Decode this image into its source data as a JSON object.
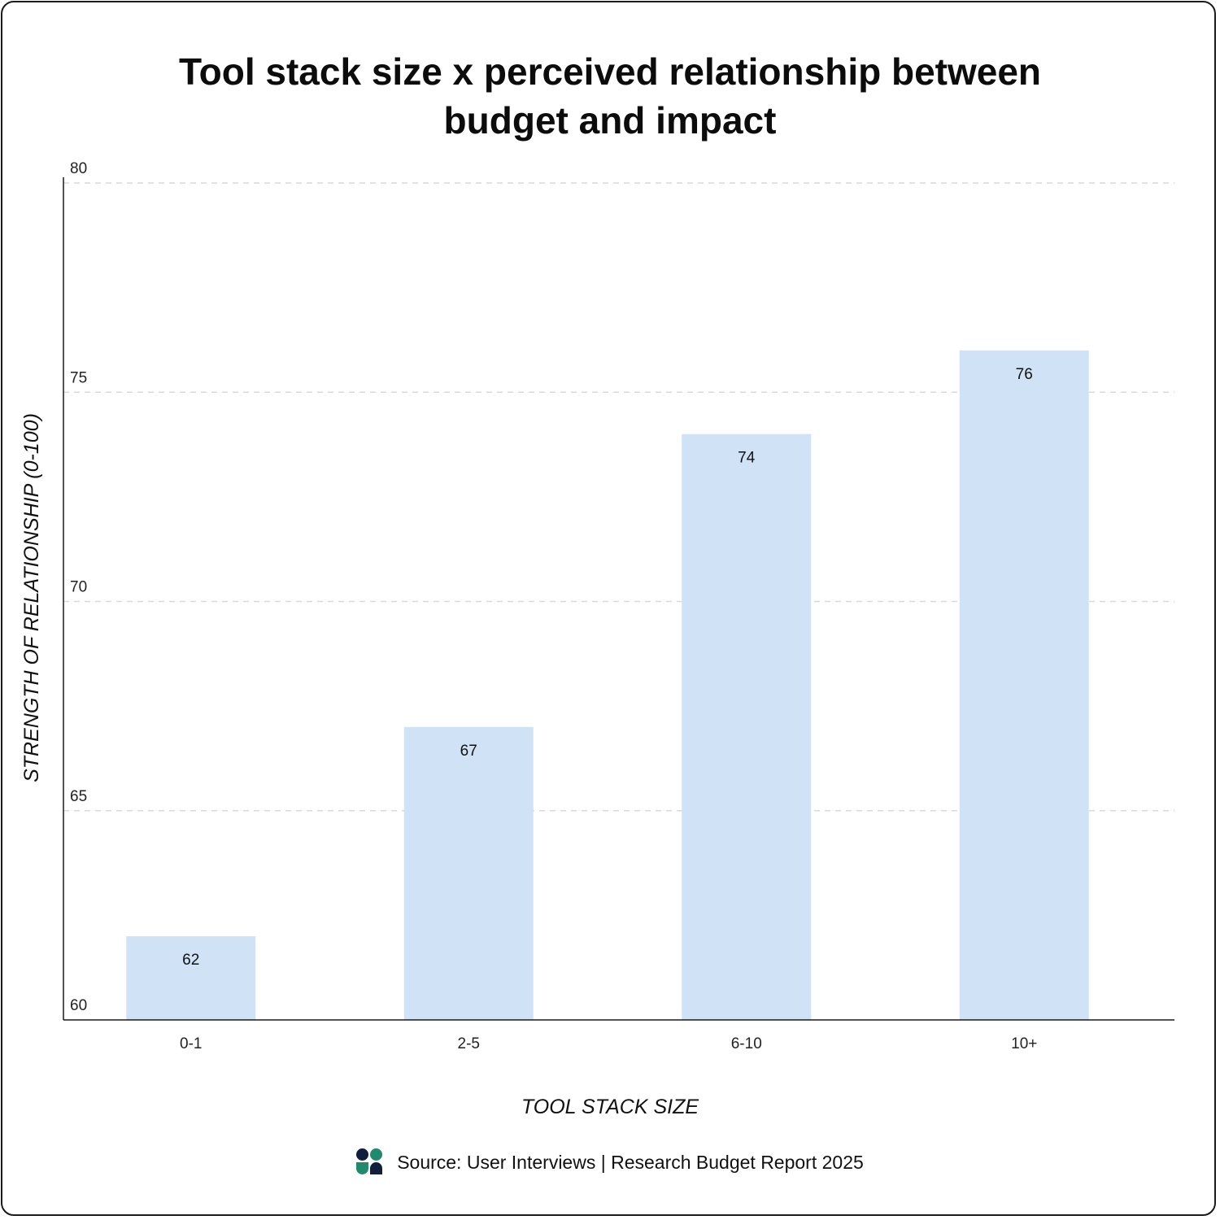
{
  "chart_data": {
    "type": "bar",
    "title_lines": [
      "Tool stack size x perceived relationship between",
      "budget and impact"
    ],
    "xlabel": "TOOL STACK SIZE",
    "ylabel": "STRENGTH OF RELATIONSHIP (0-100)",
    "categories": [
      "0-1",
      "2-5",
      "6-10",
      "10+"
    ],
    "values": [
      62,
      67,
      74,
      76
    ],
    "ylim": [
      60,
      80
    ],
    "yticks": [
      "60",
      "65",
      "70",
      "75",
      "80"
    ],
    "grid": true,
    "bar_color": "#cfe2f6",
    "data_labels": [
      "62",
      "67",
      "74",
      "76"
    ]
  },
  "footer": {
    "logo_icon": "user-interviews-logo",
    "source": "Source: User Interviews | Research Budget Report 2025"
  }
}
